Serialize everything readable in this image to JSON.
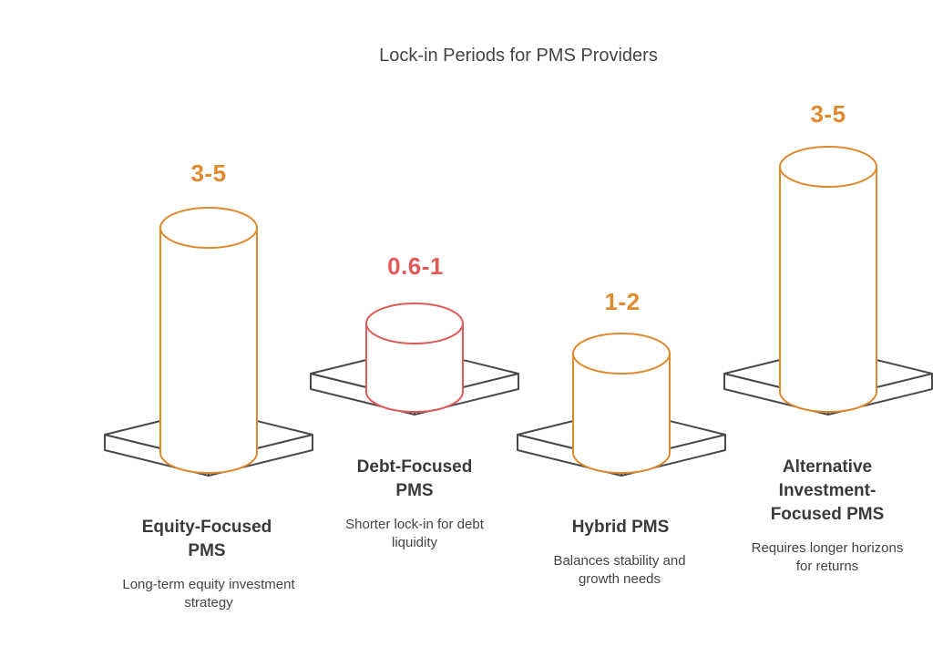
{
  "title": "Lock-in Periods for PMS Providers",
  "colors": {
    "orange": "#e08a2e",
    "red": "#e05a5a",
    "base_stroke": "#4a4a4a",
    "text": "#3a3a3a"
  },
  "chart_data": {
    "type": "bar",
    "title": "Lock-in Periods for PMS Providers",
    "categories": [
      "Equity-Focused PMS",
      "Debt-Focused PMS",
      "Hybrid PMS",
      "Alternative Investment-Focused PMS"
    ],
    "value_labels": [
      "3-5",
      "0.6-1",
      "1-2",
      "3-5"
    ]
  },
  "items": [
    {
      "value": "3-5",
      "name": "Equity-Focused PMS",
      "desc": "Long-term equity investment strategy",
      "color": "#e08a2e"
    },
    {
      "value": "0.6-1",
      "name": "Debt-Focused PMS",
      "desc": "Shorter lock-in for debt liquidity",
      "color": "#e05a5a"
    },
    {
      "value": "1-2",
      "name": "Hybrid PMS",
      "desc": "Balances stability and growth needs",
      "color": "#e08a2e"
    },
    {
      "value": "3-5",
      "name": "Alternative Investment-Focused PMS",
      "desc": "Requires longer horizons for returns",
      "color": "#e08a2e"
    }
  ]
}
